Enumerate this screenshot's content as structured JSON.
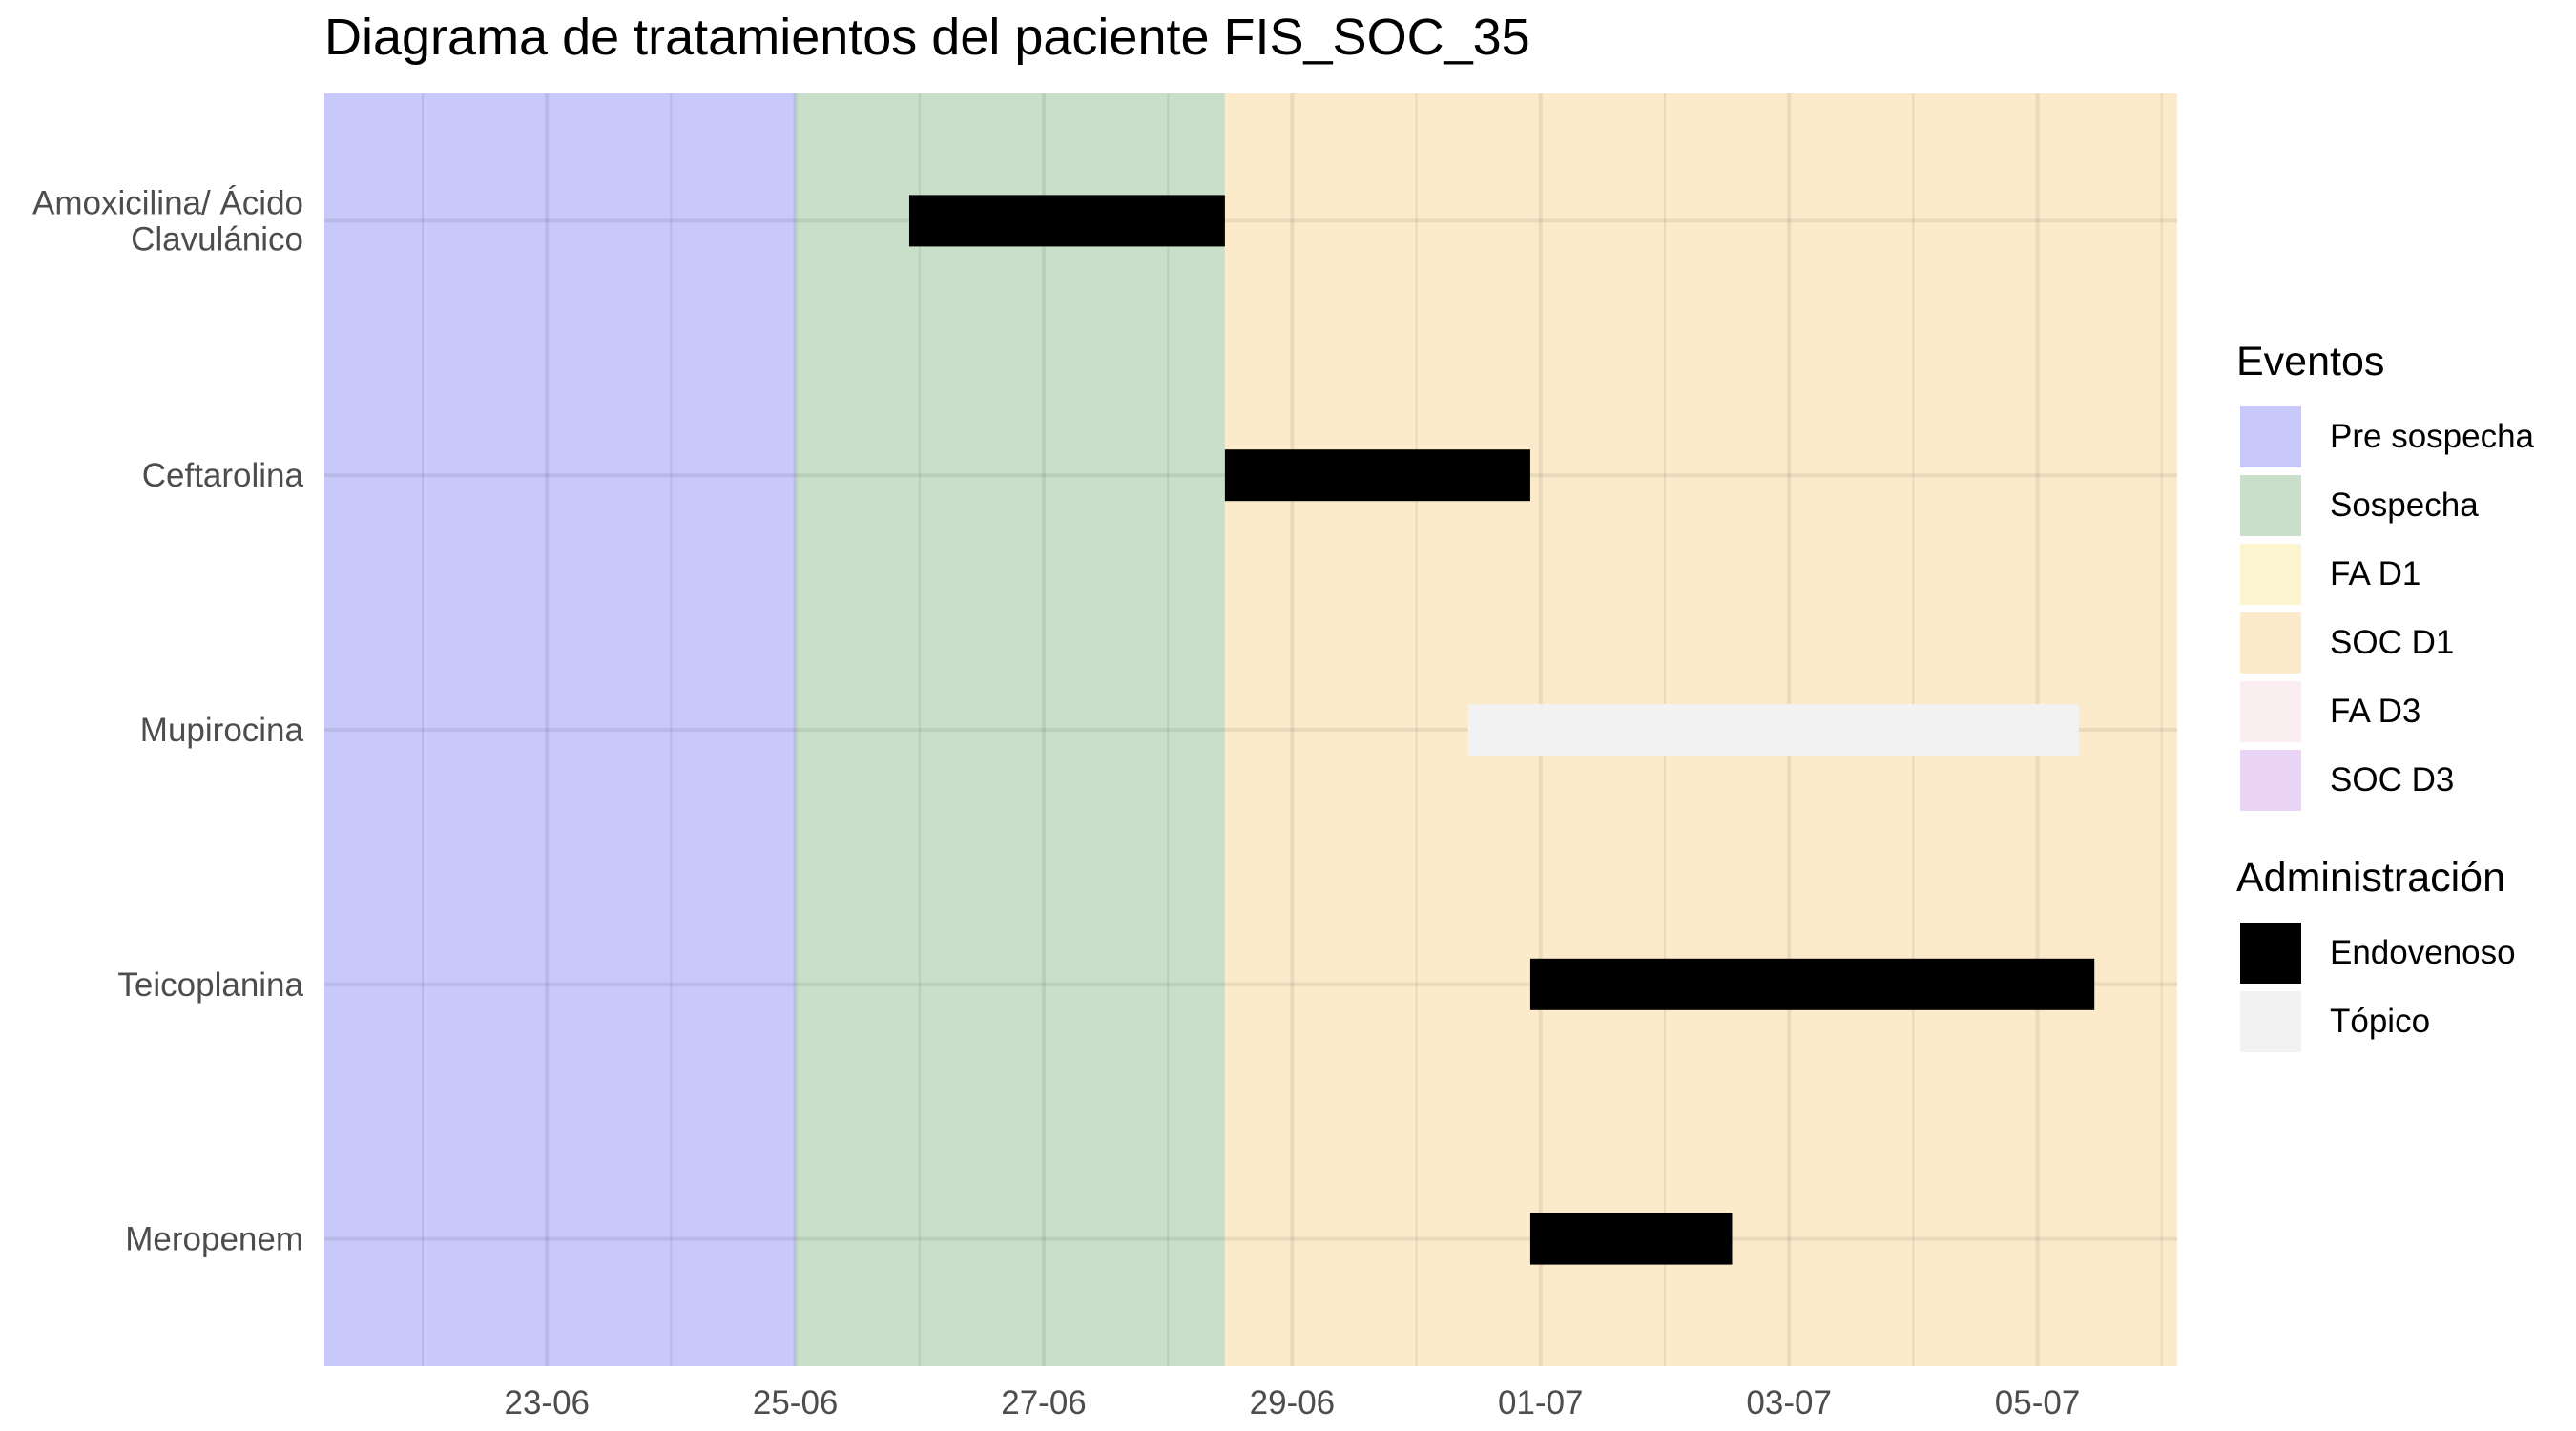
{
  "chart_data": {
    "type": "gantt",
    "title": "Diagrama de tratamientos del paciente FIS_SOC_35",
    "xlabel": "",
    "ylabel": "",
    "x_range": [
      "2024-06-21T05:00",
      "2024-07-06T03:00"
    ],
    "x_ticks": [
      {
        "date": "2024-06-23",
        "label": "23-06"
      },
      {
        "date": "2024-06-25",
        "label": "25-06"
      },
      {
        "date": "2024-06-27",
        "label": "27-06"
      },
      {
        "date": "2024-06-29",
        "label": "29-06"
      },
      {
        "date": "2024-07-01",
        "label": "01-07"
      },
      {
        "date": "2024-07-03",
        "label": "03-07"
      },
      {
        "date": "2024-07-05",
        "label": "05-07"
      }
    ],
    "categories": [
      "Amoxicilina/ Ácido\nClavulánico",
      "Ceftarolina",
      "Mupirocina",
      "Teicoplanina",
      "Meropenem"
    ],
    "periods": [
      {
        "name": "Pre sospecha",
        "start": "2024-06-21T05:00",
        "end": "2024-06-25T00:00",
        "color": "#c8c8fa"
      },
      {
        "name": "Sospecha",
        "start": "2024-06-25T00:00",
        "end": "2024-06-28T11:00",
        "color": "#c9dfca"
      },
      {
        "name": "SOC D1",
        "start": "2024-06-28T11:00",
        "end": "2024-07-06T03:00",
        "color": "#fbebcb"
      }
    ],
    "treatments": [
      {
        "drug": "Amoxicilina/ Ácido\nClavulánico",
        "start": "2024-06-25T22:00",
        "end": "2024-06-28T11:00",
        "route": "Endovenoso"
      },
      {
        "drug": "Ceftarolina",
        "start": "2024-06-28T11:00",
        "end": "2024-06-30T22:00",
        "route": "Endovenoso"
      },
      {
        "drug": "Mupirocina",
        "start": "2024-06-30T10:00",
        "end": "2024-07-05T08:00",
        "route": "Tópico"
      },
      {
        "drug": "Teicoplanina",
        "start": "2024-06-30T22:00",
        "end": "2024-07-05T11:00",
        "route": "Endovenoso"
      },
      {
        "drug": "Meropenem",
        "start": "2024-06-30T22:00",
        "end": "2024-07-02T13:00",
        "route": "Endovenoso"
      }
    ],
    "legend_placement": "right",
    "legend": {
      "eventos": {
        "title": "Eventos",
        "items": [
          {
            "label": "Pre sospecha",
            "color": "#c8c8fa"
          },
          {
            "label": "Sospecha",
            "color": "#c9dfca"
          },
          {
            "label": "FA D1",
            "color": "#fdf5cf"
          },
          {
            "label": "SOC D1",
            "color": "#fbebcb"
          },
          {
            "label": "FA D3",
            "color": "#fbeef1"
          },
          {
            "label": "SOC D3",
            "color": "#e9d4f6"
          }
        ]
      },
      "administracion": {
        "title": "Administración",
        "items": [
          {
            "label": "Endovenoso",
            "color": "#000000"
          },
          {
            "label": "Tópico",
            "color": "#f2f2f2"
          }
        ]
      }
    },
    "grid": true
  }
}
